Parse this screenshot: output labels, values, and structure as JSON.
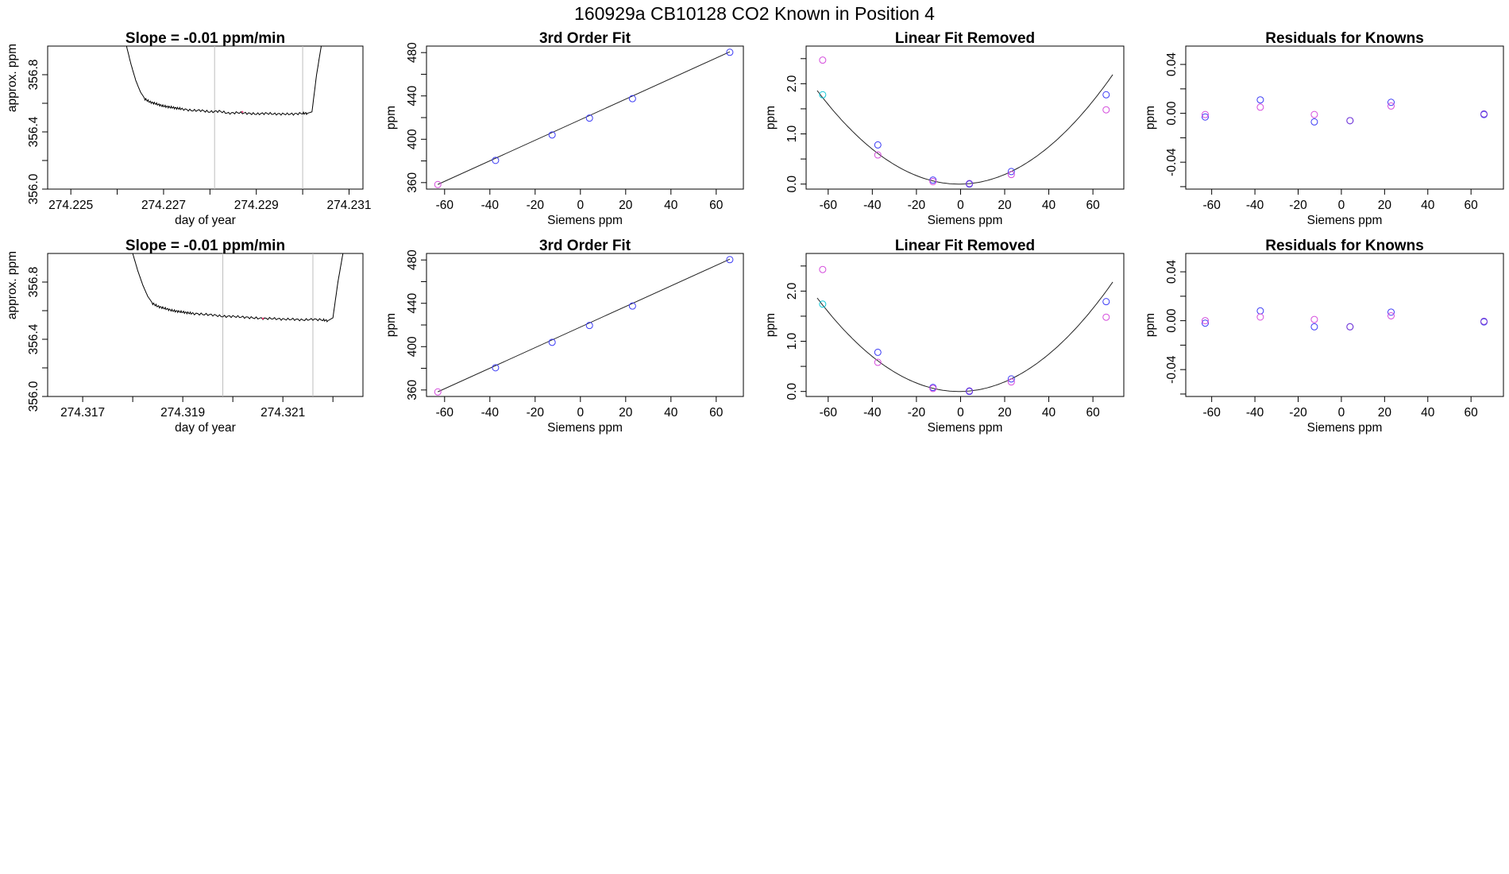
{
  "figure": {
    "title": "160929a     CB10128    CO2 Known in Position  4"
  },
  "colors": {
    "line": "#000000",
    "blue": "#3b3bf5",
    "magenta": "#d44bdc",
    "cyan": "#14c8d8",
    "purple": "#7d3dd6",
    "marker": "#ff3b7a",
    "vline": "#bdbdbd"
  },
  "chart_data": [
    {
      "type": "line",
      "title": "Slope =  -0.01  ppm/min",
      "xlabel": "day of year",
      "ylabel": "approx. ppm",
      "xlim": [
        274.2245,
        274.2313
      ],
      "ylim": [
        356.0,
        357.0
      ],
      "xticks": [
        274.225,
        274.226,
        274.227,
        274.228,
        274.229,
        274.23,
        274.231
      ],
      "xticklabels": [
        "274.225",
        "",
        "274.227",
        "",
        "274.229",
        "",
        "274.231"
      ],
      "yticks": [
        356.0,
        356.2,
        356.4,
        356.6,
        356.8
      ],
      "yticklabels": [
        "356.0",
        "",
        "356.4",
        "",
        "356.8"
      ],
      "vlines": [
        274.2281,
        274.23
      ],
      "x": [
        274.2262,
        274.2263,
        274.2264,
        274.2265,
        274.2266,
        274.2267,
        274.2268,
        274.2269,
        274.227,
        274.2271,
        274.2272,
        274.2273,
        274.2274,
        274.2276,
        274.2278,
        274.228,
        274.2282,
        274.2284,
        274.2286,
        274.2288,
        274.229,
        274.2292,
        274.2294,
        274.2296,
        274.2298,
        274.23,
        274.2301,
        274.2302,
        274.2303,
        274.2304
      ],
      "y": [
        357.0,
        356.87,
        356.76,
        356.68,
        356.63,
        356.61,
        356.6,
        356.59,
        356.58,
        356.575,
        356.57,
        356.565,
        356.56,
        356.55,
        356.55,
        356.54,
        356.545,
        356.53,
        356.535,
        356.53,
        356.525,
        356.53,
        356.525,
        356.525,
        356.525,
        356.53,
        356.53,
        356.54,
        356.8,
        357.0
      ],
      "marker_x": 274.2287,
      "marker_y": 356.54
    },
    {
      "type": "scatter",
      "title": "3rd Order Fit",
      "xlabel": "Siemens ppm",
      "ylabel": "ppm",
      "xlim": [
        -68,
        72
      ],
      "ylim": [
        354,
        486
      ],
      "xticks": [
        -60,
        -40,
        -20,
        0,
        20,
        40,
        60
      ],
      "yticks": [
        360,
        380,
        400,
        420,
        440,
        460,
        480
      ],
      "yticklabels": [
        "360",
        "",
        "400",
        "",
        "440",
        "",
        "480"
      ],
      "fit": {
        "x1": -63,
        "y1": 358.3,
        "x2": 66,
        "y2": 480.7
      },
      "series": [
        {
          "color": "blue",
          "x": [
            -37.5,
            -12.5,
            4,
            23,
            66
          ],
          "y": [
            380.5,
            404.0,
            419.5,
            437.5,
            480.3
          ]
        },
        {
          "color": "magenta",
          "x": [
            -63
          ],
          "y": [
            358.2
          ]
        }
      ]
    },
    {
      "type": "scatter",
      "title": "Linear Fit Removed",
      "xlabel": "Siemens ppm",
      "ylabel": "ppm",
      "xlim": [
        -70,
        74
      ],
      "ylim": [
        -0.1,
        2.75
      ],
      "xticks": [
        -60,
        -40,
        -20,
        0,
        20,
        40,
        60
      ],
      "yticks": [
        0.0,
        0.5,
        1.0,
        1.5,
        2.0,
        2.5
      ],
      "yticklabels": [
        "0.0",
        "",
        "1.0",
        "",
        "2.0",
        ""
      ],
      "curve": {
        "a": 0.00045,
        "b": 0.000573,
        "c": -0.000168,
        "from": -65,
        "to": 69
      },
      "series": [
        {
          "color": "blue",
          "x": [
            -37.5,
            -12.5,
            4,
            23,
            66
          ],
          "y": [
            0.78,
            0.08,
            0.0,
            0.25,
            1.78
          ]
        },
        {
          "color": "magenta",
          "x": [
            -62.5,
            -37.5,
            -12.5,
            23,
            66
          ],
          "y": [
            2.47,
            0.58,
            0.05,
            0.19,
            1.48
          ]
        },
        {
          "color": "cyan",
          "x": [
            -62.5
          ],
          "y": [
            1.78
          ]
        },
        {
          "color": "purple",
          "x": [
            4
          ],
          "y": [
            0.01
          ]
        }
      ]
    },
    {
      "type": "scatter",
      "title": "Residuals for Knowns",
      "xlabel": "Siemens ppm",
      "ylabel": "ppm",
      "xlim": [
        -72,
        75
      ],
      "ylim": [
        -0.062,
        0.055
      ],
      "xticks": [
        -60,
        -40,
        -20,
        0,
        20,
        40,
        60
      ],
      "yticks": [
        -0.06,
        -0.04,
        -0.02,
        0.0,
        0.02,
        0.04
      ],
      "yticklabels": [
        "",
        "-0.04",
        "",
        "0.00",
        "",
        "0.04"
      ],
      "series": [
        {
          "color": "blue",
          "x": [
            -63,
            -37.5,
            -12.5,
            4,
            23,
            66
          ],
          "y": [
            -0.003,
            0.011,
            -0.007,
            -0.006,
            0.009,
            -0.001
          ]
        },
        {
          "color": "magenta",
          "x": [
            -63,
            -37.5,
            -12.5,
            23
          ],
          "y": [
            -0.001,
            0.005,
            -0.001,
            0.006
          ]
        },
        {
          "color": "purple",
          "x": [
            4,
            66
          ],
          "y": [
            -0.006,
            -0.0005
          ]
        }
      ]
    },
    {
      "type": "line",
      "title": "Slope =  -0.01  ppm/min",
      "xlabel": "day of year",
      "ylabel": "approx. ppm",
      "xlim": [
        274.3163,
        274.3226
      ],
      "ylim": [
        356.0,
        357.0
      ],
      "xticks": [
        274.317,
        274.318,
        274.319,
        274.32,
        274.321,
        274.322
      ],
      "xticklabels": [
        "274.317",
        "",
        "274.319",
        "",
        "274.321",
        ""
      ],
      "yticks": [
        356.0,
        356.2,
        356.4,
        356.6,
        356.8
      ],
      "yticklabels": [
        "356.0",
        "",
        "356.4",
        "",
        "356.8"
      ],
      "vlines": [
        274.3198,
        274.3216
      ],
      "x": [
        274.318,
        274.3181,
        274.3182,
        274.3183,
        274.3184,
        274.3185,
        274.3186,
        274.3187,
        274.3188,
        274.3189,
        274.319,
        274.3191,
        274.3192,
        274.3194,
        274.3196,
        274.3198,
        274.32,
        274.3202,
        274.3204,
        274.3206,
        274.3208,
        274.321,
        274.3212,
        274.3214,
        274.3216,
        274.3218,
        274.3219,
        274.322,
        274.3221,
        274.3222
      ],
      "y": [
        357.0,
        356.88,
        356.78,
        356.7,
        356.65,
        356.63,
        356.62,
        356.61,
        356.6,
        356.595,
        356.59,
        356.585,
        356.58,
        356.575,
        356.57,
        356.56,
        356.56,
        356.555,
        356.55,
        356.545,
        356.545,
        356.54,
        356.54,
        356.535,
        356.54,
        356.535,
        356.53,
        356.55,
        356.8,
        357.0
      ],
      "marker_x": 274.3206,
      "marker_y": 356.545
    },
    {
      "type": "scatter",
      "title": "3rd Order Fit",
      "xlabel": "Siemens ppm",
      "ylabel": "ppm",
      "xlim": [
        -68,
        72
      ],
      "ylim": [
        354,
        486
      ],
      "xticks": [
        -60,
        -40,
        -20,
        0,
        20,
        40,
        60
      ],
      "yticks": [
        360,
        380,
        400,
        420,
        440,
        460,
        480
      ],
      "yticklabels": [
        "360",
        "",
        "400",
        "",
        "440",
        "",
        "480"
      ],
      "fit": {
        "x1": -63,
        "y1": 358.3,
        "x2": 66,
        "y2": 480.7
      },
      "series": [
        {
          "color": "blue",
          "x": [
            -37.5,
            -12.5,
            4,
            23,
            66
          ],
          "y": [
            380.5,
            404.0,
            419.5,
            437.5,
            480.3
          ]
        },
        {
          "color": "magenta",
          "x": [
            -63
          ],
          "y": [
            358.2
          ]
        }
      ]
    },
    {
      "type": "scatter",
      "title": "Linear Fit Removed",
      "xlabel": "Siemens ppm",
      "ylabel": "ppm",
      "xlim": [
        -70,
        74
      ],
      "ylim": [
        -0.1,
        2.75
      ],
      "xticks": [
        -60,
        -40,
        -20,
        0,
        20,
        40,
        60
      ],
      "yticks": [
        0.0,
        0.5,
        1.0,
        1.5,
        2.0,
        2.5
      ],
      "yticklabels": [
        "0.0",
        "",
        "1.0",
        "",
        "2.0",
        ""
      ],
      "curve": {
        "a": 0.00045,
        "b": 0.000573,
        "c": -0.000168,
        "from": -65,
        "to": 69
      },
      "series": [
        {
          "color": "blue",
          "x": [
            -37.5,
            -12.5,
            4,
            23,
            66
          ],
          "y": [
            0.78,
            0.08,
            0.0,
            0.25,
            1.79
          ]
        },
        {
          "color": "magenta",
          "x": [
            -62.5,
            -37.5,
            -12.5,
            23,
            66
          ],
          "y": [
            2.43,
            0.58,
            0.06,
            0.19,
            1.48
          ]
        },
        {
          "color": "cyan",
          "x": [
            -62.5
          ],
          "y": [
            1.74
          ]
        },
        {
          "color": "purple",
          "x": [
            4
          ],
          "y": [
            0.01
          ]
        }
      ]
    },
    {
      "type": "scatter",
      "title": "Residuals for Knowns",
      "xlabel": "Siemens ppm",
      "ylabel": "ppm",
      "xlim": [
        -72,
        75
      ],
      "ylim": [
        -0.062,
        0.055
      ],
      "xticks": [
        -60,
        -40,
        -20,
        0,
        20,
        40,
        60
      ],
      "yticks": [
        -0.06,
        -0.04,
        -0.02,
        0.0,
        0.02,
        0.04
      ],
      "yticklabels": [
        "",
        "-0.04",
        "",
        "0.00",
        "",
        "0.04"
      ],
      "series": [
        {
          "color": "blue",
          "x": [
            -63,
            -37.5,
            -12.5,
            4,
            23,
            66
          ],
          "y": [
            -0.002,
            0.008,
            -0.005,
            -0.005,
            0.007,
            -0.001
          ]
        },
        {
          "color": "magenta",
          "x": [
            -63,
            -37.5,
            -12.5,
            23
          ],
          "y": [
            0.0,
            0.003,
            0.001,
            0.004
          ]
        },
        {
          "color": "purple",
          "x": [
            4,
            66
          ],
          "y": [
            -0.005,
            -0.0005
          ]
        }
      ]
    }
  ]
}
